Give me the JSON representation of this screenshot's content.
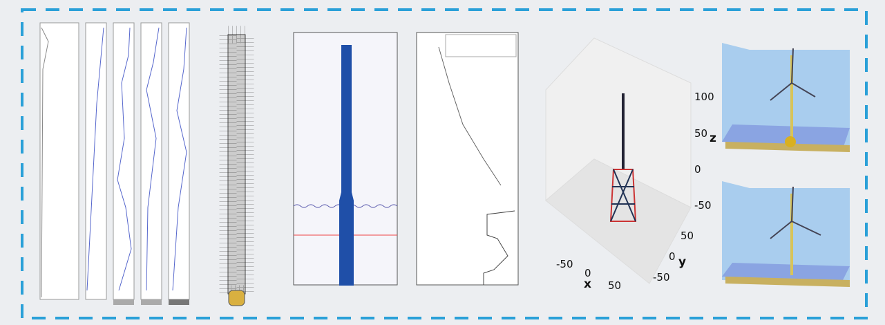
{
  "axis3d": {
    "z_ticks": [
      100,
      50,
      0,
      -50
    ],
    "y_ticks": [
      50,
      0,
      -50
    ],
    "x_ticks": [
      -50,
      0,
      50
    ],
    "x_label": "x",
    "y_label": "y",
    "z_label": "z"
  }
}
